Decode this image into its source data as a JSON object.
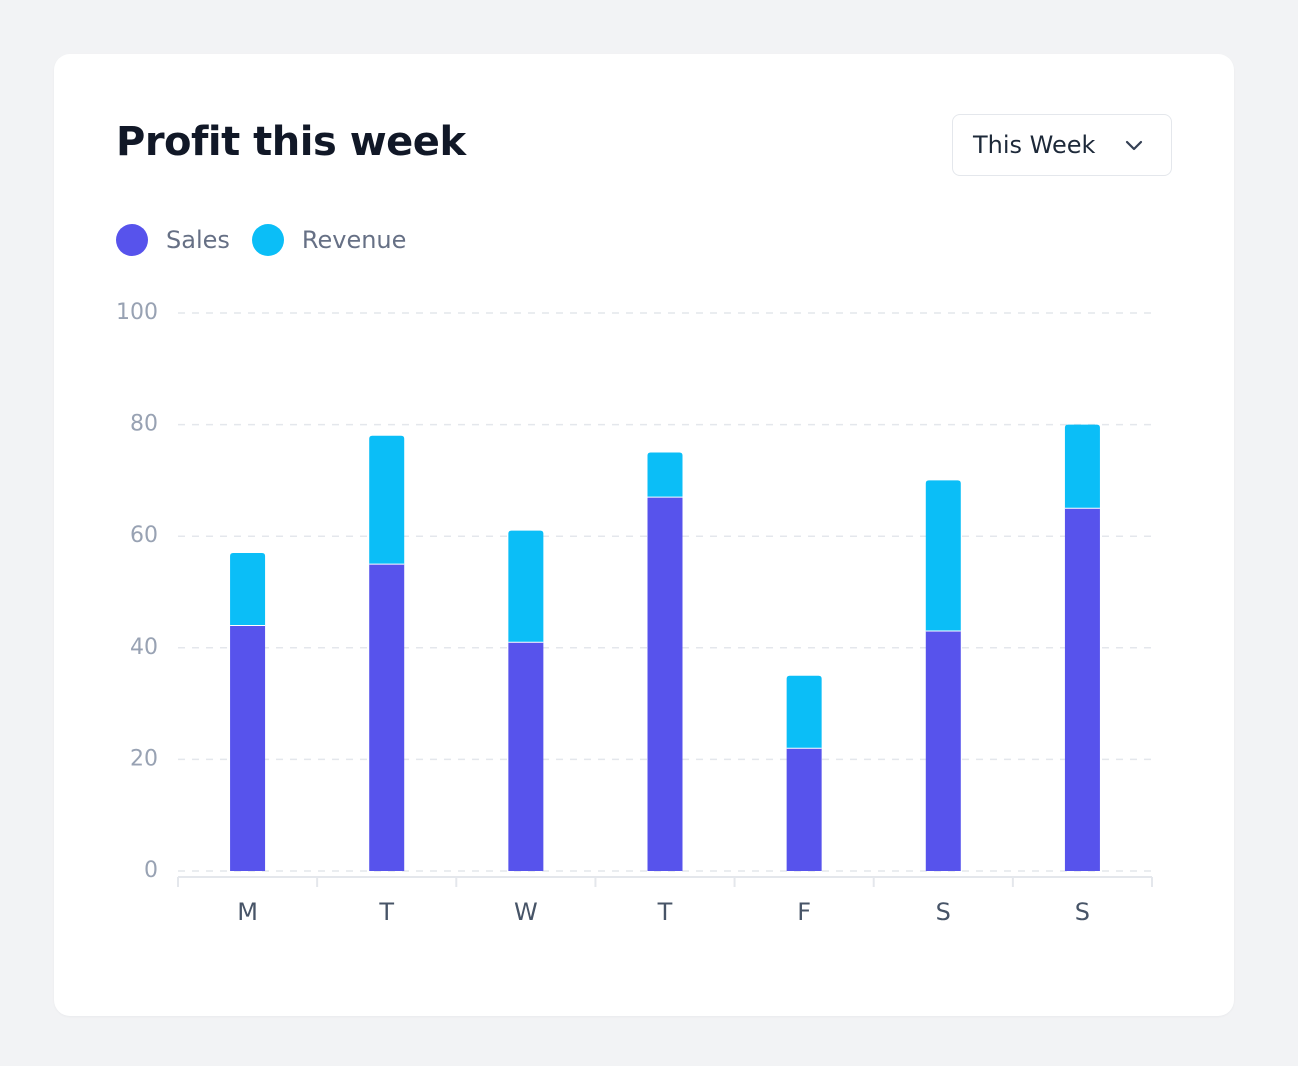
{
  "card": {
    "title": "Profit this week",
    "period_select": {
      "label": "This Week",
      "icon": "chevron-down-icon"
    }
  },
  "legend": [
    {
      "label": "Sales",
      "color": "#5753ec"
    },
    {
      "label": "Revenue",
      "color": "#0bbef7"
    }
  ],
  "chart_data": {
    "type": "bar",
    "stacked": true,
    "title": "Profit this week",
    "xlabel": "",
    "ylabel": "",
    "categories": [
      "M",
      "T",
      "W",
      "T",
      "F",
      "S",
      "S"
    ],
    "series": [
      {
        "name": "Sales",
        "color": "#5753ec",
        "values": [
          44,
          55,
          41,
          67,
          22,
          43,
          65
        ]
      },
      {
        "name": "Revenue",
        "color": "#0bbef7",
        "values": [
          13,
          23,
          20,
          8,
          13,
          27,
          15
        ]
      }
    ],
    "ylim": [
      0,
      100
    ],
    "yticks": [
      0,
      20,
      40,
      60,
      80,
      100
    ],
    "grid": true,
    "legend_position": "top-left"
  }
}
